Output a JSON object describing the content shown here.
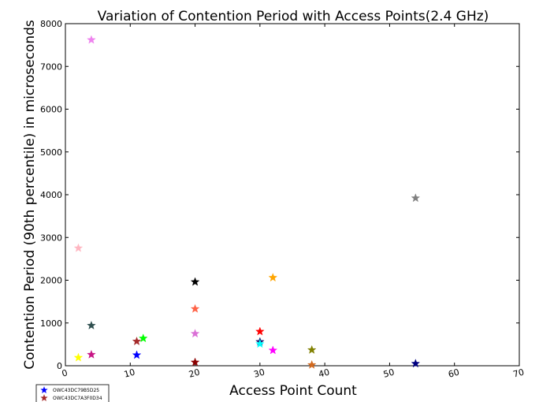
{
  "chart_data": {
    "type": "scatter",
    "title": "Variation of Contention Period with Access Points(2.4 GHz)",
    "xlabel": "Access Point Count",
    "ylabel": "Contention Period (90th percentile) in microseconds",
    "xlim": [
      0,
      70
    ],
    "ylim": [
      0,
      8000
    ],
    "xticks": [
      0,
      10,
      20,
      30,
      40,
      50,
      60,
      70
    ],
    "yticks": [
      0,
      1000,
      2000,
      3000,
      4000,
      5000,
      6000,
      7000,
      8000
    ],
    "grid": false,
    "marker": "star",
    "legend": {
      "position": "bottom-left",
      "entries": [
        {
          "label": "OWC43DC79B5D25",
          "color": "#0000ff"
        },
        {
          "label": "OWC43DC7A3F0D34",
          "color": "#a52a2a"
        }
      ]
    },
    "points": [
      {
        "x": 2,
        "y": 190,
        "color": "#ffff00"
      },
      {
        "x": 2,
        "y": 2750,
        "color": "#ffb6c1"
      },
      {
        "x": 4,
        "y": 7620,
        "color": "#ee82ee"
      },
      {
        "x": 4,
        "y": 940,
        "color": "#2f4f4f"
      },
      {
        "x": 4,
        "y": 260,
        "color": "#c71585"
      },
      {
        "x": 11,
        "y": 250,
        "color": "#0000ff"
      },
      {
        "x": 11,
        "y": 570,
        "color": "#a52a2a"
      },
      {
        "x": 12,
        "y": 640,
        "color": "#00ff00"
      },
      {
        "x": 20,
        "y": 1960,
        "color": "#000000"
      },
      {
        "x": 20,
        "y": 1330,
        "color": "#ff6347"
      },
      {
        "x": 20,
        "y": 750,
        "color": "#da70d6"
      },
      {
        "x": 20,
        "y": 80,
        "color": "#8b0000"
      },
      {
        "x": 30,
        "y": 800,
        "color": "#ff0000"
      },
      {
        "x": 30,
        "y": 560,
        "color": "#191970"
      },
      {
        "x": 30,
        "y": 510,
        "color": "#00ffff"
      },
      {
        "x": 32,
        "y": 2060,
        "color": "#ffa500"
      },
      {
        "x": 32,
        "y": 360,
        "color": "#ff00ff"
      },
      {
        "x": 38,
        "y": 370,
        "color": "#808000"
      },
      {
        "x": 38,
        "y": 20,
        "color": "#d2691e"
      },
      {
        "x": 54,
        "y": 3920,
        "color": "#808080"
      },
      {
        "x": 54,
        "y": 50,
        "color": "#000080"
      }
    ]
  }
}
